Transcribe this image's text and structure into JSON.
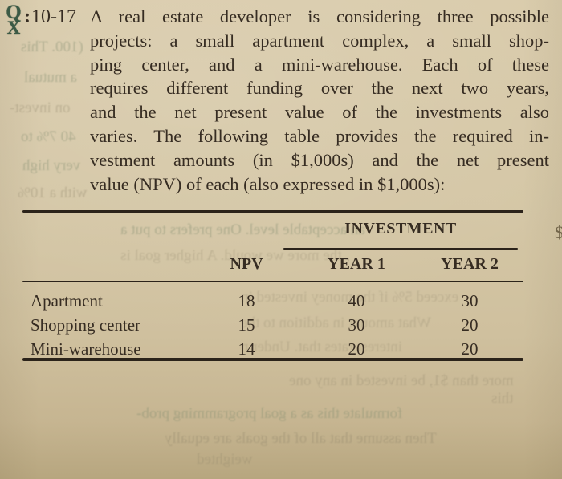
{
  "problem": {
    "icon": "qm-software-icon",
    "icon_q": "Q",
    "icon_x": "X",
    "number_prefix": ":",
    "number": "10-17",
    "lines": [
      "A real estate developer is considering three possible",
      "projects: a small apartment complex, a small shop-",
      "ping center, and a mini-warehouse. Each of these",
      "requires different funding over the next two years,",
      "and the net present value of the investments also",
      "varies. The following table provides the required in-",
      "vestment amounts (in $1,000s) and the net present",
      "value (NPV) of each (also expressed in $1,000s):"
    ]
  },
  "table": {
    "spanner": "INVESTMENT",
    "columns": [
      "NPV",
      "YEAR 1",
      "YEAR 2"
    ],
    "rows": [
      {
        "label": "Apartment",
        "npv": "18",
        "year1": "40",
        "year2": "30"
      },
      {
        "label": "Shopping center",
        "npv": "15",
        "year1": "30",
        "year2": "20"
      },
      {
        "label": "Mini-warehouse",
        "npv": "14",
        "year1": "20",
        "year2": "20"
      }
    ]
  },
  "bleedthrough": {
    "snippets": [
      {
        "text": "(100. This"
      },
      {
        "text": "a mutual"
      },
      {
        "text": "on invest-"
      },
      {
        "text": "40 7% to"
      },
      {
        "text": "very high"
      },
      {
        "text": "with a 10%"
      },
      {
        "text": "an acceptable level. One prefers to put a"
      },
      {
        "text": "the more we would. A higher goal is"
      },
      {
        "text": "exceed 5% if the money invested in"
      },
      {
        "text": "What amount in addition to the"
      },
      {
        "text": "interest rates that. Under n"
      },
      {
        "text": "more than $1, be invested in any one"
      },
      {
        "text": "this"
      },
      {
        "text": "formulate this as a goal programming prob-"
      },
      {
        "text": "Then assume that all of the goals are equally"
      },
      {
        "text": "weighted"
      }
    ]
  },
  "edge_fragment": {
    "text": "$"
  },
  "colors": {
    "paper": "#d3c5a4",
    "ink": "#362c22",
    "rule": "#2b231a",
    "icon_green": "#3b5a45"
  }
}
